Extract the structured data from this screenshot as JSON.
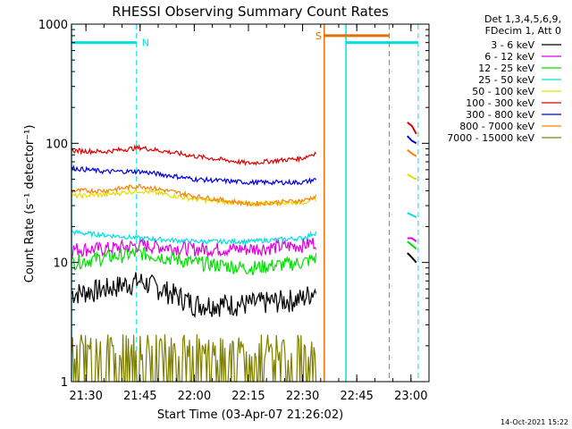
{
  "chart_data": {
    "type": "line",
    "title": "RHESSI Observing Summary Count Rates",
    "xlabel": "Start Time (03-Apr-07 21:26:02)",
    "ylabel": "Count Rate (s⁻¹ detector⁻¹)",
    "y_scale": "log",
    "ylim": [
      1,
      1000
    ],
    "xlim": [
      "21:26",
      "23:05"
    ],
    "x_ticks": [
      "21:30",
      "21:45",
      "22:00",
      "22:15",
      "22:30",
      "22:45",
      "23:00"
    ],
    "y_ticks": [
      "1",
      "10",
      "100",
      "1000"
    ],
    "legend_header": [
      "Det 1,3,4,5,6,9,",
      "FDecim 1, Att 0"
    ],
    "legend_placement": "right",
    "footer_date": "14-Oct-2021 15:22",
    "series": [
      {
        "name": "3 - 6 keV",
        "color": "#000000",
        "x": [
          "21:26",
          "21:35",
          "21:45",
          "22:00",
          "22:15",
          "22:30",
          "22:34"
        ],
        "y": [
          5.5,
          6,
          7,
          4.5,
          4.5,
          5,
          6
        ]
      },
      {
        "name": "6 - 12 keV",
        "color": "#e000e0",
        "x": [
          "21:26",
          "21:35",
          "21:45",
          "22:00",
          "22:15",
          "22:30",
          "22:34"
        ],
        "y": [
          13,
          13,
          14,
          13,
          13,
          14,
          15
        ]
      },
      {
        "name": "12 - 25 keV",
        "color": "#00e000",
        "x": [
          "21:26",
          "21:35",
          "21:45",
          "22:00",
          "22:15",
          "22:30",
          "22:34"
        ],
        "y": [
          10,
          11,
          12,
          10,
          9,
          10,
          11
        ]
      },
      {
        "name": "25 - 50 keV",
        "color": "#00e0e0",
        "x": [
          "21:26",
          "21:35",
          "21:45",
          "22:00",
          "22:15",
          "22:30",
          "22:34"
        ],
        "y": [
          18,
          17,
          16,
          15,
          15,
          16,
          18
        ]
      },
      {
        "name": "50 - 100 keV",
        "color": "#e0e000",
        "x": [
          "21:26",
          "21:35",
          "21:45",
          "22:00",
          "22:15",
          "22:30",
          "22:34"
        ],
        "y": [
          36,
          37,
          40,
          34,
          31,
          32,
          34
        ]
      },
      {
        "name": "100 - 300 keV",
        "color": "#e00000",
        "x": [
          "21:26",
          "21:35",
          "21:45",
          "22:00",
          "22:15",
          "22:30",
          "22:34"
        ],
        "y": [
          87,
          85,
          92,
          78,
          68,
          75,
          84
        ]
      },
      {
        "name": "300 - 800 keV",
        "color": "#0000e0",
        "x": [
          "21:26",
          "21:35",
          "21:45",
          "22:00",
          "22:15",
          "22:30",
          "22:34"
        ],
        "y": [
          62,
          58,
          58,
          50,
          47,
          47,
          50
        ]
      },
      {
        "name": "800 - 7000 keV",
        "color": "#ff8000",
        "x": [
          "21:26",
          "21:35",
          "21:45",
          "22:00",
          "22:15",
          "22:30",
          "22:34"
        ],
        "y": [
          40,
          40,
          44,
          36,
          31,
          33,
          36
        ]
      },
      {
        "name": "7000 - 15000 keV",
        "color": "#808000",
        "x": [
          "21:26",
          "21:35",
          "21:45",
          "22:00",
          "22:15",
          "22:30",
          "22:34"
        ],
        "y": [
          1.5,
          2,
          2,
          1.5,
          1.5,
          1.5,
          2
        ]
      }
    ],
    "after_gap_series": [
      {
        "name": "100 - 300 keV",
        "y": [
          150,
          140,
          120
        ]
      },
      {
        "name": "300 - 800 keV",
        "y": [
          115,
          105,
          100
        ]
      },
      {
        "name": "800 - 7000 keV",
        "y": [
          88,
          82,
          78
        ]
      },
      {
        "name": "50 - 100 keV",
        "y": [
          55,
          52,
          50
        ]
      },
      {
        "name": "25 - 50 keV",
        "y": [
          26,
          25,
          24
        ]
      },
      {
        "name": "6 - 12 keV",
        "y": [
          16,
          16,
          15
        ]
      },
      {
        "name": "12 - 25 keV",
        "y": [
          15,
          14,
          13
        ]
      },
      {
        "name": "3 - 6 keV",
        "y": [
          12,
          11,
          10
        ]
      }
    ],
    "annotations": [
      {
        "label": "N",
        "type": "night",
        "color": "#00e0e0",
        "x_start": "21:26",
        "x_end": "21:44",
        "y": 700
      },
      {
        "label": "",
        "type": "night",
        "color": "#00e0e0",
        "x_start": "22:42",
        "x_end": "23:02",
        "y": 700
      },
      {
        "label": "S",
        "type": "saa",
        "color": "#e07000",
        "x_start": "22:36",
        "x_end": "22:54",
        "y": 800
      }
    ]
  }
}
